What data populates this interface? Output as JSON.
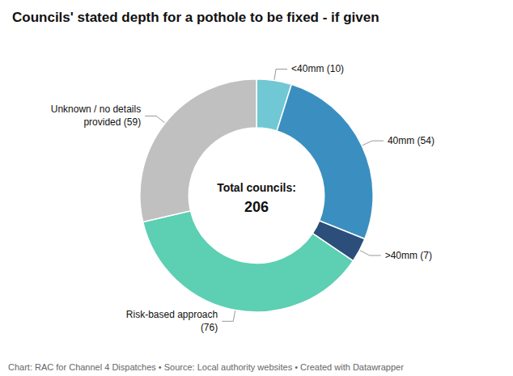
{
  "chart_data": {
    "type": "donut",
    "title": "Councils' stated depth for a pothole to be fixed - if given",
    "categories": [
      "<40mm (10)",
      "40mm (54)",
      ">40mm (7)",
      "Risk-based approach\n(76)",
      "Unknown / no details\nprovided (59)"
    ],
    "values": [
      10,
      54,
      7,
      76,
      59
    ],
    "colors": [
      "#70c8d4",
      "#3b8fc0",
      "#2b4f7a",
      "#5dcfb2",
      "#c0c0c0"
    ],
    "annotations": [
      "Total councils:",
      "206",
      "Chart: RAC for Channel 4 Dispatches • Source: Local authority websites • Created with Datawrapper"
    ]
  }
}
